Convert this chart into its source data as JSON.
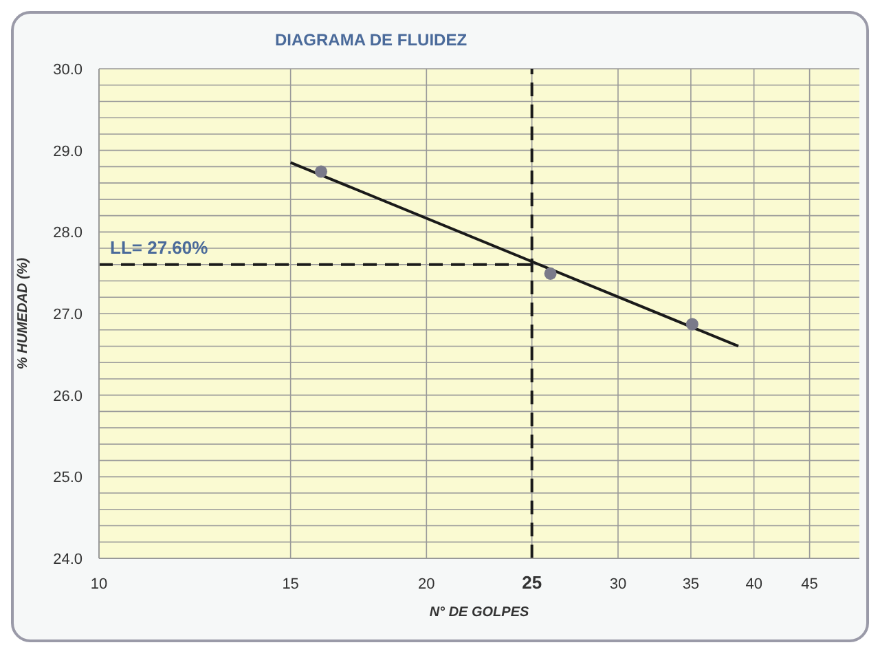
{
  "chart_data": {
    "type": "scatter",
    "title": "DIAGRAMA DE FLUIDEZ",
    "xlabel": "N° DE GOLPES",
    "ylabel": "% HUMEDAD (%)",
    "log": "x",
    "xlim": [
      10,
      50
    ],
    "xticks": [
      10,
      15,
      20,
      25,
      30,
      35,
      40,
      45
    ],
    "ylim": [
      24,
      30
    ],
    "yticks": [
      {
        "value": 24,
        "label": "24.0"
      },
      {
        "value": 24.2,
        "label": null
      },
      {
        "value": 24.4,
        "label": null
      },
      {
        "value": 24.6,
        "label": null
      },
      {
        "value": 24.8,
        "label": null
      },
      {
        "value": 25,
        "label": "25.0"
      },
      {
        "value": 25.2,
        "label": null
      },
      {
        "value": 25.4,
        "label": null
      },
      {
        "value": 25.6,
        "label": null
      },
      {
        "value": 25.8,
        "label": null
      },
      {
        "value": 26,
        "label": "26.0"
      },
      {
        "value": 26.2,
        "label": null
      },
      {
        "value": 26.4,
        "label": null
      },
      {
        "value": 26.6,
        "label": null
      },
      {
        "value": 26.8,
        "label": null
      },
      {
        "value": 27,
        "label": "27.0"
      },
      {
        "value": 27.2,
        "label": null
      },
      {
        "value": 27.4,
        "label": null
      },
      {
        "value": 27.6,
        "label": null
      },
      {
        "value": 27.8,
        "label": null
      },
      {
        "value": 28,
        "label": "28.0"
      },
      {
        "value": 28.2,
        "label": null
      },
      {
        "value": 28.4,
        "label": null
      },
      {
        "value": 28.6,
        "label": null
      },
      {
        "value": 28.8,
        "label": null
      },
      {
        "value": 29,
        "label": "29.0"
      },
      {
        "value": 29.2,
        "label": null
      },
      {
        "value": 29.4,
        "label": null
      },
      {
        "value": 29.6,
        "label": null
      },
      {
        "value": 29.8,
        "label": null
      },
      {
        "value": 30,
        "label": "30.0"
      }
    ],
    "grid": true,
    "marker": "circle",
    "series": [
      {
        "color": "#7a7a8a",
        "x": [
          16,
          26,
          35.1
        ],
        "values": [
          28.74,
          27.49,
          26.87
        ]
      },
      {
        "type": "line",
        "color": "#1a1a1a",
        "x": [
          15,
          38.7
        ],
        "values": [
          28.85,
          26.6
        ],
        "marker": "none"
      }
    ],
    "ref_lines": [
      {
        "axis": "x",
        "value": 25,
        "line_style": "dashed",
        "color": "#1a1a1a"
      },
      {
        "axis": "y",
        "value": 27.6,
        "label": "LL= 27.60%",
        "line_style": "dashed",
        "color": "#1a1a1a"
      }
    ]
  }
}
